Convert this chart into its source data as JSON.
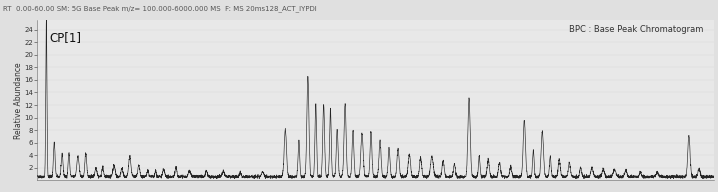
{
  "title_text": "RT  0.00-60.00 SM: 5G Base Peak m/z= 100.000-6000.000 MS  F: MS 20ms128_ACT_IYPDI",
  "label_cp": "CP[1]",
  "label_bpc": "BPC : Base Peak Chromatogram",
  "ylabel": "Relative Abundance",
  "yticks": [
    2,
    4,
    6,
    8,
    10,
    12,
    14,
    16,
    18,
    20,
    22,
    24
  ],
  "ymax": 25.5,
  "ymin": 0,
  "xmin": 0,
  "xmax": 60,
  "fig_bg_color": "#e0e0e0",
  "plot_bg_color": "#e8e8e8",
  "line_color": "#1a1a1a",
  "title_color": "#555555",
  "annotation_color": "#333333",
  "title_fontsize": 5.0,
  "ylabel_fontsize": 5.5,
  "tick_labelsize": 5.0,
  "cp_fontsize": 8.5,
  "bpc_fontsize": 6.0
}
